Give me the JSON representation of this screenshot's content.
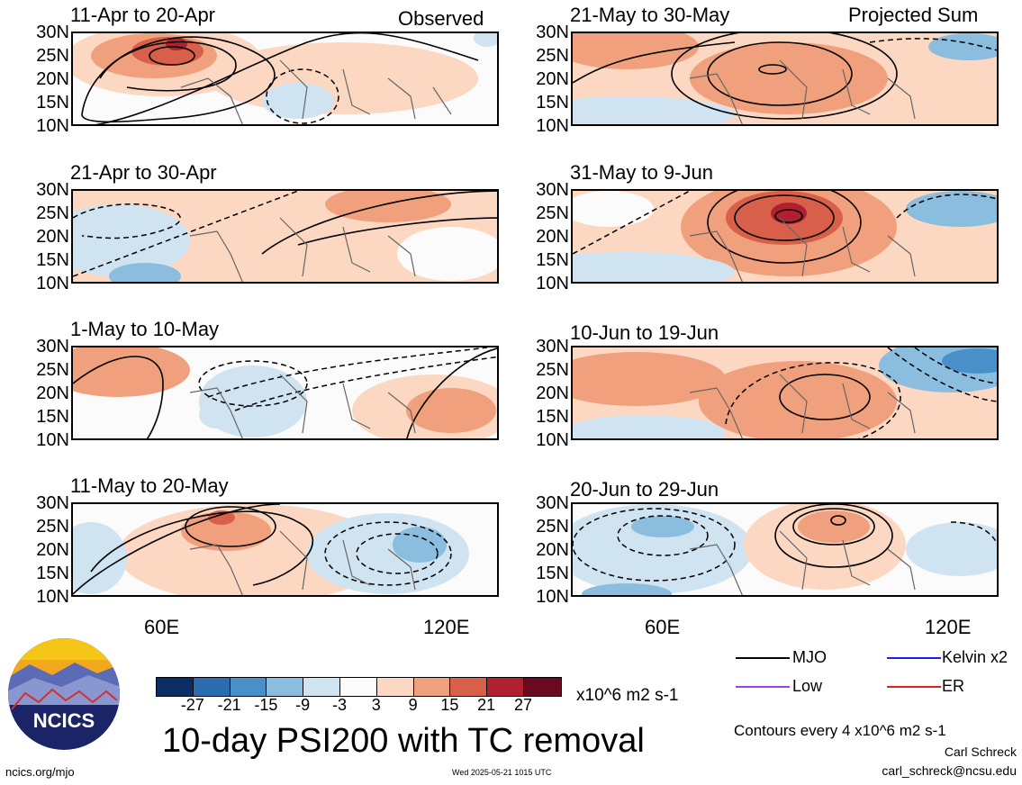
{
  "panels_left": [
    {
      "title": "11-Apr to 20-Apr",
      "tag": "Observed"
    },
    {
      "title": "21-Apr to 30-Apr",
      "tag": ""
    },
    {
      "title": "1-May to 10-May",
      "tag": ""
    },
    {
      "title": "11-May to 20-May",
      "tag": ""
    }
  ],
  "panels_right": [
    {
      "title": "21-May to 30-May",
      "tag": "Projected Sum"
    },
    {
      "title": "31-May to 9-Jun",
      "tag": ""
    },
    {
      "title": "10-Jun to 19-Jun",
      "tag": ""
    },
    {
      "title": "20-Jun to 29-Jun",
      "tag": ""
    }
  ],
  "lat_labels": [
    "30N",
    "25N",
    "20N",
    "15N",
    "10N"
  ],
  "lon_labels": {
    "a": "60E",
    "b": "120E"
  },
  "colorbar": {
    "labels": [
      "-27",
      "-21",
      "-15",
      "-9",
      "-3",
      "3",
      "9",
      "15",
      "21",
      "27"
    ],
    "colors": [
      "#0b2f63",
      "#2b6cb0",
      "#4a90c8",
      "#8bbddf",
      "#cfe3f0",
      "#fbfbfb",
      "#fcd8c2",
      "#f0a07c",
      "#d8604a",
      "#b02030",
      "#6b0a1e"
    ],
    "units": "x10^6 m2 s-1"
  },
  "title": "10-day PSI200 with TC removal",
  "legend": {
    "mjo": "MJO",
    "kelvin": "Kelvin x2",
    "low": "Low",
    "er": "ER",
    "contours": "Contours every 4 x10^6 m2 s-1"
  },
  "footer": {
    "logo": "NCICS",
    "site": "ncics.org/mjo",
    "timestamp": "Wed 2025-05-21 1015 UTC",
    "author": "Carl Schreck",
    "email": "carl_schreck@ncsu.edu"
  }
}
